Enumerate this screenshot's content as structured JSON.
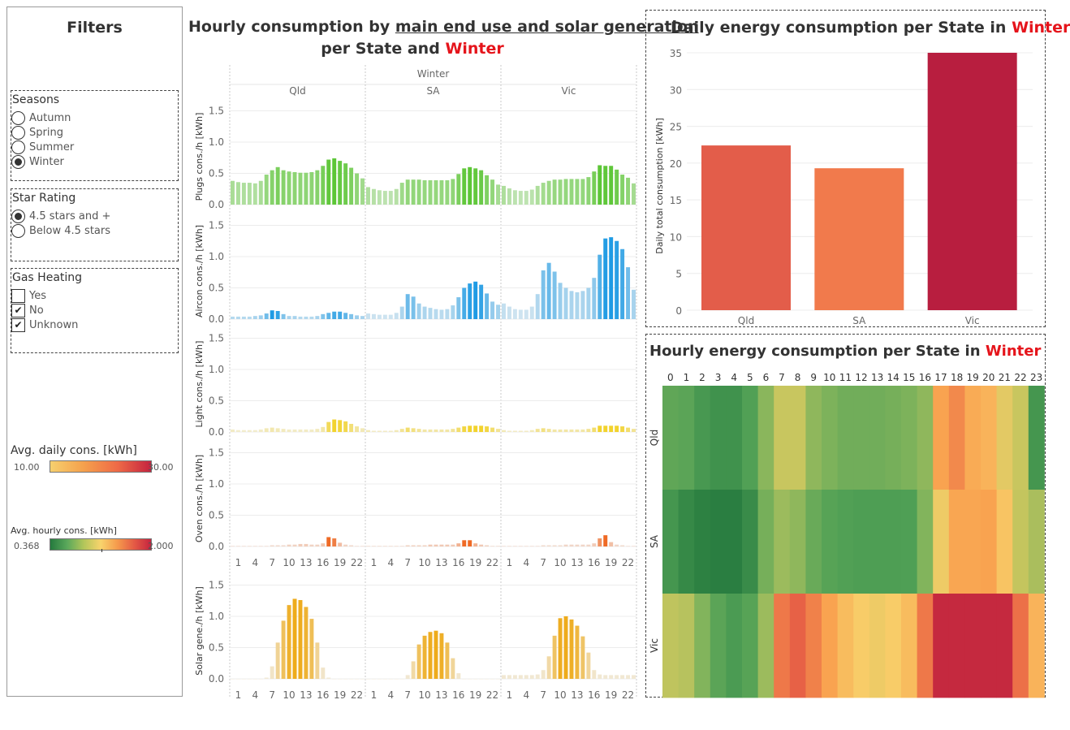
{
  "filters": {
    "title": "Filters",
    "seasons": {
      "title": "Seasons",
      "options": [
        "Autumn",
        "Spring",
        "Summer",
        "Winter"
      ],
      "selected": "Winter"
    },
    "star_rating": {
      "title": "Star Rating",
      "options": [
        "4.5 stars and +",
        "Below 4.5 stars"
      ],
      "selected": "4.5 stars and +"
    },
    "gas_heating": {
      "title": "Gas Heating",
      "options": [
        {
          "label": "Yes",
          "checked": false
        },
        {
          "label": "No",
          "checked": true
        },
        {
          "label": "Unknown",
          "checked": true
        }
      ]
    }
  },
  "legends": {
    "daily": {
      "title": "Avg. daily cons. [kWh]",
      "min": "10.00",
      "max": "30.00"
    },
    "hourly": {
      "title": "Avg. hourly cons.  [kWh]",
      "min": "0.368",
      "max": "2.000"
    }
  },
  "main_chart": {
    "title_part1": "Hourly consumption by ",
    "title_underlined": "main end use and solar generation",
    "title_part2": "per State and ",
    "title_highlight": "Winter",
    "season_header": "Winter"
  },
  "daily_chart": {
    "title_part1": "Daily energy consumption per State in  ",
    "title_highlight": "Winter"
  },
  "heat_chart": {
    "title_part1": "Hourly energy consumption per State in ",
    "title_highlight": "Winter"
  },
  "colors": {
    "highlight": "#e5141b",
    "plugs": "#5cc636",
    "aircon": "#1f9be4",
    "light": "#f2d32d",
    "oven": "#ef6a25",
    "solar": "#eeab1b"
  },
  "chart_data": [
    {
      "type": "bar",
      "title": "Hourly consumption by main end use and solar generation per State and Winter",
      "facet_header": "Winter",
      "columns": [
        "Qld",
        "SA",
        "Vic"
      ],
      "x": [
        0,
        1,
        2,
        3,
        4,
        5,
        6,
        7,
        8,
        9,
        10,
        11,
        12,
        13,
        14,
        15,
        16,
        17,
        18,
        19,
        20,
        21,
        22,
        23
      ],
      "xticks": [
        "1",
        "4",
        "7",
        "10",
        "13",
        "16",
        "19",
        "22"
      ],
      "yticks": [
        "0.0",
        "0.5",
        "1.0",
        "1.5"
      ],
      "ylim": [
        0,
        1.7
      ],
      "rows": [
        {
          "ylabel": "Plugs cons./h [kWh]",
          "color": "#5cc636",
          "series": [
            {
              "name": "Qld",
              "values": [
                0.38,
                0.36,
                0.35,
                0.35,
                0.34,
                0.38,
                0.48,
                0.55,
                0.6,
                0.55,
                0.53,
                0.52,
                0.51,
                0.51,
                0.52,
                0.55,
                0.62,
                0.72,
                0.74,
                0.7,
                0.66,
                0.59,
                0.5,
                0.42
              ]
            },
            {
              "name": "SA",
              "values": [
                0.28,
                0.25,
                0.23,
                0.22,
                0.22,
                0.25,
                0.35,
                0.4,
                0.4,
                0.4,
                0.39,
                0.39,
                0.39,
                0.39,
                0.39,
                0.41,
                0.49,
                0.58,
                0.6,
                0.58,
                0.55,
                0.47,
                0.4,
                0.32
              ]
            },
            {
              "name": "Vic",
              "values": [
                0.3,
                0.26,
                0.23,
                0.22,
                0.22,
                0.24,
                0.3,
                0.35,
                0.38,
                0.4,
                0.4,
                0.41,
                0.41,
                0.41,
                0.41,
                0.44,
                0.53,
                0.63,
                0.62,
                0.62,
                0.56,
                0.48,
                0.43,
                0.34
              ]
            }
          ]
        },
        {
          "ylabel": "Aircon cons./h [kWh]",
          "color": "#1f9be4",
          "series": [
            {
              "name": "Qld",
              "values": [
                0.04,
                0.04,
                0.04,
                0.04,
                0.05,
                0.06,
                0.09,
                0.14,
                0.13,
                0.08,
                0.05,
                0.05,
                0.04,
                0.04,
                0.04,
                0.05,
                0.08,
                0.1,
                0.12,
                0.12,
                0.1,
                0.08,
                0.06,
                0.05
              ]
            },
            {
              "name": "SA",
              "values": [
                0.09,
                0.08,
                0.07,
                0.07,
                0.07,
                0.1,
                0.2,
                0.4,
                0.36,
                0.25,
                0.2,
                0.18,
                0.16,
                0.15,
                0.16,
                0.22,
                0.35,
                0.5,
                0.57,
                0.6,
                0.55,
                0.41,
                0.28,
                0.23
              ]
            },
            {
              "name": "Vic",
              "values": [
                0.25,
                0.2,
                0.16,
                0.15,
                0.15,
                0.2,
                0.4,
                0.78,
                0.9,
                0.76,
                0.58,
                0.5,
                0.45,
                0.43,
                0.45,
                0.5,
                0.66,
                1.03,
                1.29,
                1.31,
                1.25,
                1.12,
                0.83,
                0.47
              ]
            }
          ]
        },
        {
          "ylabel": "Light cons./h [kWh]",
          "color": "#f2d32d",
          "series": [
            {
              "name": "Qld",
              "values": [
                0.04,
                0.03,
                0.03,
                0.03,
                0.03,
                0.04,
                0.06,
                0.07,
                0.06,
                0.05,
                0.04,
                0.04,
                0.04,
                0.04,
                0.04,
                0.05,
                0.08,
                0.16,
                0.2,
                0.19,
                0.17,
                0.13,
                0.09,
                0.06
              ]
            },
            {
              "name": "SA",
              "values": [
                0.03,
                0.02,
                0.02,
                0.02,
                0.02,
                0.03,
                0.05,
                0.07,
                0.06,
                0.05,
                0.04,
                0.04,
                0.04,
                0.04,
                0.04,
                0.05,
                0.07,
                0.09,
                0.1,
                0.1,
                0.1,
                0.09,
                0.07,
                0.05
              ]
            },
            {
              "name": "Vic",
              "values": [
                0.03,
                0.02,
                0.02,
                0.02,
                0.02,
                0.03,
                0.05,
                0.06,
                0.05,
                0.04,
                0.04,
                0.04,
                0.04,
                0.04,
                0.04,
                0.05,
                0.07,
                0.1,
                0.1,
                0.1,
                0.1,
                0.09,
                0.07,
                0.05
              ]
            }
          ]
        },
        {
          "ylabel": "Oven cons./h [kWh]",
          "color": "#ef6a25",
          "series": [
            {
              "name": "Qld",
              "values": [
                0.01,
                0.01,
                0.01,
                0.01,
                0.01,
                0.01,
                0.01,
                0.02,
                0.02,
                0.02,
                0.03,
                0.03,
                0.04,
                0.04,
                0.03,
                0.03,
                0.05,
                0.15,
                0.13,
                0.06,
                0.03,
                0.02,
                0.01,
                0.01
              ]
            },
            {
              "name": "SA",
              "values": [
                0.01,
                0.01,
                0.01,
                0.01,
                0.01,
                0.01,
                0.01,
                0.02,
                0.02,
                0.02,
                0.02,
                0.03,
                0.03,
                0.03,
                0.03,
                0.03,
                0.05,
                0.1,
                0.1,
                0.05,
                0.03,
                0.02,
                0.01,
                0.01
              ]
            },
            {
              "name": "Vic",
              "values": [
                0.01,
                0.01,
                0.01,
                0.01,
                0.01,
                0.01,
                0.01,
                0.02,
                0.02,
                0.02,
                0.02,
                0.03,
                0.03,
                0.03,
                0.03,
                0.03,
                0.05,
                0.13,
                0.18,
                0.07,
                0.03,
                0.02,
                0.01,
                0.01
              ]
            }
          ]
        },
        {
          "ylabel": "Solar gene./h [kWh]",
          "color": "#eeab1b",
          "series": [
            {
              "name": "Qld",
              "values": [
                0,
                0,
                0,
                0,
                0,
                0,
                0.02,
                0.2,
                0.58,
                0.93,
                1.18,
                1.28,
                1.26,
                1.15,
                0.96,
                0.58,
                0.18,
                0.02,
                0,
                0,
                0,
                0,
                0,
                0
              ]
            },
            {
              "name": "SA",
              "values": [
                0,
                0,
                0,
                0,
                0,
                0,
                0,
                0.06,
                0.28,
                0.55,
                0.69,
                0.75,
                0.77,
                0.73,
                0.58,
                0.33,
                0.09,
                0,
                0,
                0,
                0,
                0,
                0,
                0
              ]
            },
            {
              "name": "Vic",
              "values": [
                0.06,
                0.06,
                0.06,
                0.06,
                0.06,
                0.06,
                0.07,
                0.14,
                0.36,
                0.69,
                0.97,
                1.0,
                0.95,
                0.85,
                0.68,
                0.42,
                0.14,
                0.07,
                0.06,
                0.06,
                0.06,
                0.06,
                0.06,
                0.06
              ]
            }
          ]
        }
      ]
    },
    {
      "type": "bar",
      "title": "Daily energy consumption per State in  Winter",
      "categories": [
        "Qld",
        "SA",
        "Vic"
      ],
      "values": [
        22.4,
        19.3,
        35.0
      ],
      "colors": [
        "#e35d4a",
        "#f17a4c",
        "#b81e3f"
      ],
      "ylabel": "Daily total consumption [kWh]",
      "yticks": [
        "0",
        "5",
        "10",
        "15",
        "20",
        "25",
        "30",
        "35"
      ],
      "ylim": [
        0,
        35
      ]
    },
    {
      "type": "heatmap",
      "title": "Hourly energy consumption per State in Winter",
      "x": [
        "0",
        "1",
        "2",
        "3",
        "4",
        "5",
        "6",
        "7",
        "8",
        "9",
        "10",
        "11",
        "12",
        "13",
        "14",
        "15",
        "16",
        "17",
        "18",
        "19",
        "20",
        "21",
        "22",
        "23"
      ],
      "y": [
        "Qld",
        "SA",
        "Vic"
      ],
      "values": [
        [
          0.75,
          0.72,
          0.6,
          0.55,
          0.55,
          0.66,
          0.98,
          1.22,
          1.22,
          1.0,
          0.92,
          0.85,
          0.85,
          0.85,
          0.88,
          0.92,
          1.0,
          1.7,
          1.85,
          1.65,
          1.6,
          1.35,
          1.22,
          0.58
        ],
        [
          0.58,
          0.48,
          0.42,
          0.4,
          0.4,
          0.5,
          0.88,
          1.05,
          1.0,
          0.8,
          0.7,
          0.66,
          0.64,
          0.64,
          0.64,
          0.65,
          0.95,
          1.4,
          1.68,
          1.68,
          1.7,
          1.5,
          1.2,
          1.1
        ],
        [
          1.18,
          1.15,
          0.95,
          0.72,
          0.62,
          0.7,
          1.05,
          1.95,
          2.1,
          1.9,
          1.7,
          1.55,
          1.45,
          1.4,
          1.45,
          1.55,
          1.95,
          2.5,
          2.55,
          2.55,
          2.5,
          2.4,
          2.0,
          1.6
        ]
      ]
    }
  ]
}
